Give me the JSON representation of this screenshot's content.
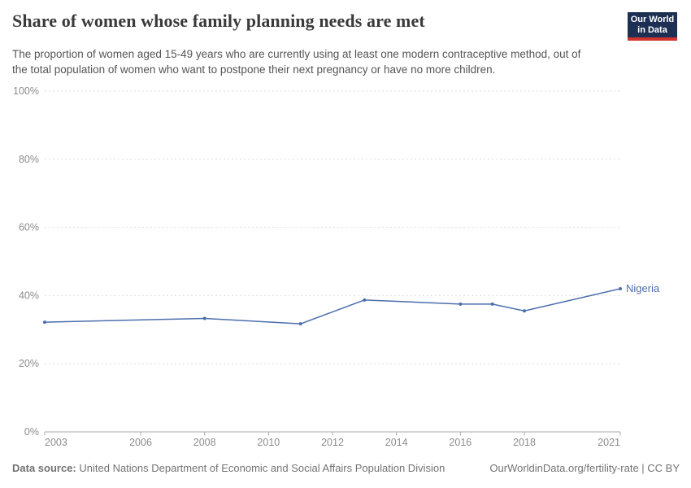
{
  "header": {
    "title": "Share of women whose family planning needs are met",
    "subtitle": "The proportion of women aged 15-49 years who are currently using at least one modern contraceptive method, out of the total population of women who want to postpone their next pregnancy or have no more children."
  },
  "logo": {
    "line1": "Our World",
    "line2": "in Data",
    "bg_color": "#1d3053",
    "bar_color": "#cf342e"
  },
  "chart_data": {
    "type": "line",
    "title": "Share of women whose family planning needs are met",
    "series": [
      {
        "name": "Nigeria",
        "x": [
          2003,
          2008,
          2011,
          2013,
          2016,
          2017,
          2018,
          2021
        ],
        "values": [
          32.2,
          33.3,
          31.7,
          38.7,
          37.5,
          37.5,
          35.5,
          42.0
        ],
        "color": "#4c6ead"
      }
    ],
    "x_ticks": [
      2003,
      2006,
      2008,
      2010,
      2012,
      2014,
      2016,
      2018,
      2021
    ],
    "y_ticks": [
      0,
      20,
      40,
      60,
      80,
      100
    ],
    "y_tick_suffix": "%",
    "xlim": [
      2003,
      2021
    ],
    "ylim": [
      0,
      100
    ],
    "grid": "horizontal-dashed",
    "legend_position": "end-of-line-label",
    "colors": {
      "grid": "#dedede",
      "axis": "#a8a8a8",
      "tick_label": "#8c8c8c"
    }
  },
  "footer": {
    "source_label": "Data source:",
    "source_text": "United Nations Department of Economic and Social Affairs Population Division",
    "credit": "OurWorldinData.org/fertility-rate | CC BY"
  }
}
